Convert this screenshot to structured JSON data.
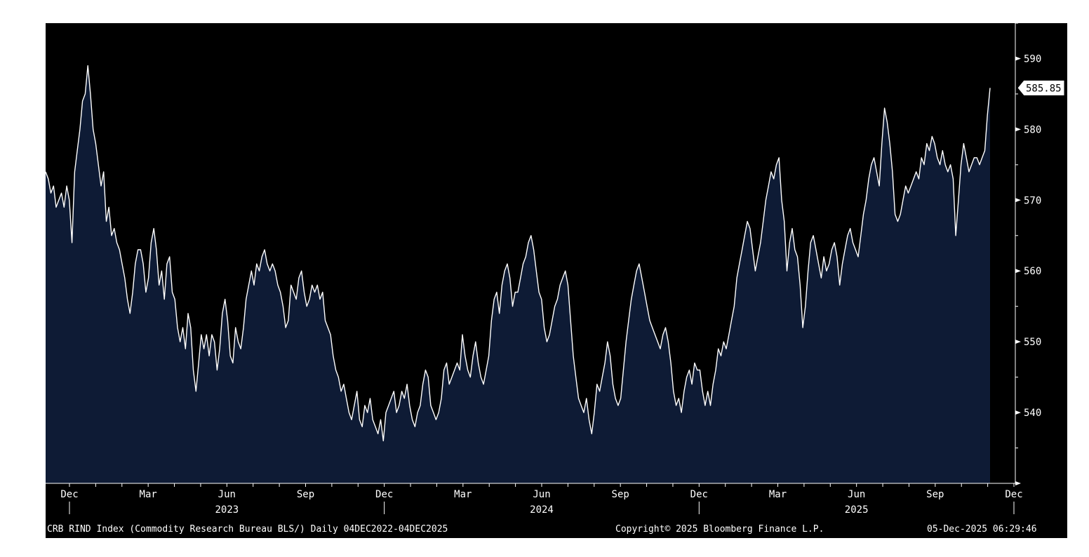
{
  "chart_data": {
    "type": "area",
    "ylim": [
      530,
      595
    ],
    "yticks": [
      540,
      550,
      560,
      570,
      580,
      590
    ],
    "month_ticks": [
      "Dec",
      "Mar",
      "Jun",
      "Sep",
      "Dec",
      "Mar",
      "Jun",
      "Sep",
      "Dec",
      "Mar",
      "Jun",
      "Sep",
      "Dec"
    ],
    "year_labels": [
      "2023",
      "2024",
      "2025"
    ],
    "last_value": "585.85",
    "colors": {
      "background": "#000000",
      "fill": "#0e1b35",
      "line": "#ffffff",
      "axis": "#ffffff"
    },
    "series": [
      {
        "values": [
          574,
          573,
          571,
          572,
          569,
          570,
          571,
          569,
          572,
          570,
          564,
          574,
          577,
          580,
          584,
          585,
          589,
          585,
          580,
          578,
          575,
          572,
          574,
          567,
          569,
          565,
          566,
          564,
          563,
          561,
          559,
          556,
          554,
          557,
          561,
          563,
          563,
          561,
          557,
          559,
          564,
          566,
          563,
          558,
          560,
          556,
          561,
          562,
          557,
          556,
          552,
          550,
          552,
          549,
          554,
          552,
          546,
          543,
          547,
          551,
          549,
          551,
          548,
          551,
          550,
          546,
          549,
          554,
          556,
          553,
          548,
          547,
          552,
          550,
          549,
          552,
          556,
          558,
          560,
          558,
          561,
          560,
          562,
          563,
          561,
          560,
          561,
          560,
          558,
          557,
          555,
          552,
          553,
          558,
          557,
          556,
          559,
          560,
          557,
          555,
          556,
          558,
          557,
          558,
          556,
          557,
          553,
          552,
          551,
          548,
          546,
          545,
          543,
          544,
          542,
          540,
          539,
          541,
          543,
          539,
          538,
          541,
          540,
          542,
          539,
          538,
          537,
          539,
          536,
          540,
          541,
          542,
          543,
          540,
          541,
          543,
          542,
          544,
          541,
          539,
          538,
          540,
          541,
          544,
          546,
          545,
          541,
          540,
          539,
          540,
          542,
          546,
          547,
          544,
          545,
          546,
          547,
          546,
          551,
          548,
          546,
          545,
          548,
          550,
          547,
          545,
          544,
          546,
          548,
          553,
          556,
          557,
          554,
          558,
          560,
          561,
          559,
          555,
          557,
          557,
          559,
          561,
          562,
          564,
          565,
          563,
          560,
          557,
          556,
          552,
          550,
          551,
          553,
          555,
          556,
          558,
          559,
          560,
          558,
          553,
          548,
          545,
          542,
          541,
          540,
          542,
          539,
          537,
          540,
          544,
          543,
          545,
          547,
          550,
          548,
          544,
          542,
          541,
          542,
          546,
          550,
          553,
          556,
          558,
          560,
          561,
          559,
          557,
          555,
          553,
          552,
          551,
          550,
          549,
          551,
          552,
          550,
          547,
          543,
          541,
          542,
          540,
          543,
          545,
          546,
          544,
          547,
          546,
          546,
          543,
          541,
          543,
          541,
          544,
          546,
          549,
          548,
          550,
          549,
          551,
          553,
          555,
          559,
          561,
          563,
          565,
          567,
          566,
          563,
          560,
          562,
          564,
          567,
          570,
          572,
          574,
          573,
          575,
          576,
          570,
          567,
          560,
          564,
          566,
          563,
          562,
          558,
          552,
          555,
          560,
          564,
          565,
          563,
          561,
          559,
          562,
          560,
          561,
          563,
          564,
          562,
          558,
          561,
          563,
          565,
          566,
          564,
          563,
          562,
          565,
          568,
          570,
          573,
          575,
          576,
          574,
          572,
          578,
          583,
          581,
          578,
          574,
          568,
          567,
          568,
          570,
          572,
          571,
          572,
          573,
          574,
          573,
          576,
          575,
          578,
          577,
          579,
          578,
          576,
          575,
          577,
          575,
          574,
          575,
          573,
          565,
          570,
          575,
          578,
          576,
          574,
          575,
          576,
          576,
          575,
          576,
          577,
          582,
          585.85
        ]
      }
    ]
  },
  "footer": {
    "left": "CRB RIND Index (Commodity Research Bureau BLS/) Daily 04DEC2022-04DEC2025",
    "center": "Copyright© 2025 Bloomberg Finance L.P.",
    "right": "05-Dec-2025 06:29:46"
  }
}
